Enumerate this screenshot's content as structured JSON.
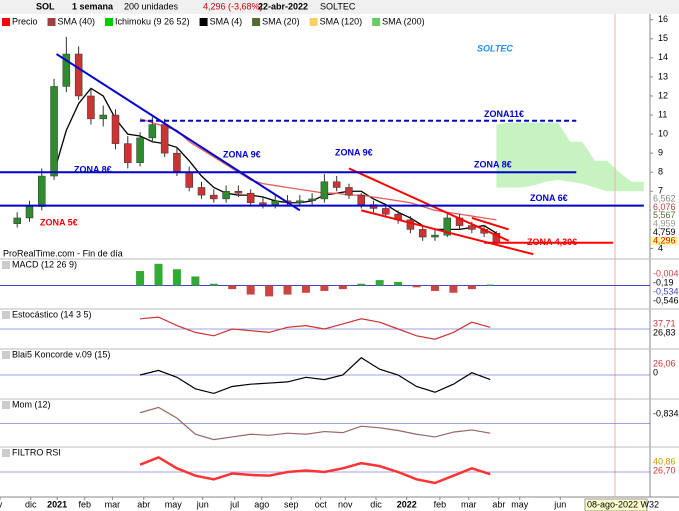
{
  "toolbar": {
    "symbol": "SOL",
    "period": "1 semana",
    "units": "200 unidades",
    "price": "4,296 (-3,68%)",
    "date": "22-abr-2022",
    "name": "SOLTEC"
  },
  "legend": [
    {
      "text": "Precio",
      "color": "#ff0000"
    },
    {
      "text": "SMA (40)",
      "color": "#a04040"
    },
    {
      "text": "Ichimoku (9 26 52)",
      "color": "#00cc00"
    },
    {
      "text": "SMA (4)",
      "color": "#000000"
    },
    {
      "text": "SMA (20)",
      "color": "#556b2f"
    },
    {
      "text": "SMA (120)",
      "color": "#ffcc66"
    },
    {
      "text": "SMA (200)",
      "color": "#66cc66"
    }
  ],
  "watermark": "ProRealTime.com - Fin de día",
  "date_box": "08-ago-2022 W32",
  "chart_data": {
    "type": "candlestick",
    "title": "SOLTEC",
    "open": [
      5.3,
      5.6,
      6.2,
      7.8,
      12.5,
      14.2,
      12.0,
      10.8,
      11.0,
      9.5,
      8.5,
      9.8,
      10.5,
      9.0,
      8.0,
      7.2,
      6.8,
      6.6,
      7.0,
      6.9,
      6.4,
      6.3,
      6.5,
      6.4,
      6.5,
      6.6,
      7.5,
      7.2,
      6.8,
      6.3,
      6.1,
      5.8,
      5.5,
      5.0,
      4.6,
      4.7,
      5.6,
      5.2,
      5.0,
      4.8
    ],
    "high": [
      5.9,
      6.5,
      8.2,
      12.9,
      15.1,
      14.6,
      12.4,
      11.5,
      11.3,
      9.9,
      10.1,
      10.9,
      10.8,
      9.3,
      8.3,
      7.5,
      7.1,
      7.3,
      7.3,
      7.1,
      6.7,
      6.8,
      6.8,
      6.8,
      6.9,
      7.9,
      7.8,
      7.4,
      6.9,
      6.5,
      6.3,
      6.0,
      5.7,
      5.2,
      5.0,
      5.9,
      5.8,
      5.4,
      5.2,
      4.9
    ],
    "low": [
      5.1,
      5.4,
      6.0,
      7.6,
      12.2,
      11.8,
      10.5,
      10.4,
      9.2,
      8.2,
      8.3,
      9.6,
      8.8,
      7.8,
      7.0,
      6.6,
      6.4,
      6.4,
      6.7,
      6.2,
      6.1,
      6.1,
      6.2,
      6.2,
      6.3,
      6.4,
      7.0,
      6.6,
      6.1,
      5.9,
      5.6,
      5.3,
      4.8,
      4.4,
      4.4,
      4.6,
      5.0,
      4.8,
      4.6,
      4.2
    ],
    "close": [
      5.6,
      6.2,
      7.8,
      12.5,
      14.2,
      12.0,
      10.8,
      11.0,
      9.5,
      8.5,
      9.8,
      10.5,
      9.0,
      8.0,
      7.2,
      6.8,
      6.6,
      7.0,
      6.9,
      6.4,
      6.3,
      6.5,
      6.4,
      6.5,
      6.6,
      7.5,
      7.2,
      6.8,
      6.3,
      6.1,
      5.8,
      5.5,
      5.0,
      4.6,
      4.7,
      5.6,
      5.2,
      5.0,
      4.8,
      4.3
    ],
    "up_color": "#2e8b2e",
    "down_color": "#cc3333",
    "lines": [
      {
        "color": "#000000",
        "values": [
          null,
          null,
          null,
          8.0,
          10.2,
          11.6,
          12.4,
          12.0,
          10.8,
          10.0,
          9.9,
          9.6,
          9.5,
          9.3,
          8.6,
          7.8,
          7.2,
          6.9,
          6.8,
          6.8,
          6.7,
          6.5,
          6.4,
          6.4,
          6.5,
          6.8,
          6.9,
          7.0,
          7.0,
          6.6,
          6.3,
          5.9,
          5.6,
          5.2,
          5.0,
          5.0,
          5.0,
          5.1,
          5.2,
          4.8
        ]
      },
      {
        "color": "#e06060",
        "values": [
          null,
          null,
          null,
          null,
          null,
          null,
          null,
          null,
          null,
          null,
          10.8,
          10.6,
          10.4,
          10.2,
          9.6,
          9.2,
          8.8,
          8.4,
          8.0,
          7.6,
          7.4,
          7.3,
          7.2,
          7.1,
          7.0,
          6.9,
          6.9,
          6.8,
          6.8,
          6.7,
          6.6,
          6.5,
          6.4,
          6.2,
          6.0,
          5.9,
          5.8,
          5.7,
          5.6,
          5.5
        ]
      }
    ],
    "cloud": {
      "color": "#b8f0b0",
      "x": [
        39,
        40,
        41,
        42,
        43,
        44,
        45,
        46,
        47,
        48,
        49,
        50,
        51
      ],
      "upper": [
        10.5,
        10.6,
        10.6,
        10.6,
        10.6,
        10.6,
        9.6,
        9.6,
        8.6,
        8.6,
        8.0,
        7.5,
        7.5
      ],
      "lower": [
        7.2,
        7.2,
        7.2,
        7.3,
        7.5,
        7.6,
        7.5,
        7.4,
        7.2,
        7.0,
        7.0,
        7.0,
        7.0
      ]
    },
    "levels": [
      {
        "label": "ZONA11€",
        "value": 10.7,
        "from": 10,
        "to": 45.5,
        "color": "#0000cc",
        "dashed": true
      },
      {
        "label": "ZONA 8€",
        "value": 8,
        "from": -3,
        "to": 45.5,
        "color": "#0000cc",
        "dashed": false
      },
      {
        "label": "ZONA 6€",
        "value": 6.25,
        "from": -3,
        "to": 51,
        "color": "#0000cc",
        "dashed": false
      },
      {
        "label": "ZONA 4,30€",
        "value": 4.3,
        "from": 38,
        "to": 48.5,
        "color": "#ff0000",
        "dashed": false
      }
    ],
    "trendlines": [
      {
        "color": "#0000cc",
        "from": [
          3.2,
          14.2
        ],
        "to": [
          23,
          6.0
        ]
      },
      {
        "color": "#ff0000",
        "from": [
          27,
          8.2
        ],
        "to": [
          40,
          4.4
        ]
      },
      {
        "color": "#ff0000",
        "from": [
          28,
          6.0
        ],
        "to": [
          42,
          3.7
        ]
      },
      {
        "color": "#ff0000",
        "from": [
          37,
          5.6
        ],
        "to": [
          40,
          5.0
        ]
      }
    ],
    "annotations": [
      {
        "text": "ZONA 9€",
        "color": "#0000cc"
      },
      {
        "text": "ZONA 9€",
        "color": "#0000cc"
      },
      {
        "text": "ZONA 5€",
        "color": "#ff0000"
      }
    ],
    "price_labels": [
      {
        "text": "6,562",
        "color": "#888"
      },
      {
        "text": "6,076",
        "color": "#c04040"
      },
      {
        "text": "5,567",
        "color": "#556b2f"
      },
      {
        "text": "4,959",
        "color": "#999"
      },
      {
        "text": "4,759",
        "color": "#000"
      },
      {
        "text": "4,296",
        "color": "#ff0000"
      }
    ],
    "ylim": [
      3.5,
      16.3
    ],
    "yticks": [
      4,
      5,
      6,
      7,
      8,
      9,
      10,
      11,
      12,
      13,
      14,
      15,
      16
    ],
    "xlim": [
      -1.4,
      51.5
    ],
    "xticks": [
      {
        "value": -1.4,
        "label": "v"
      },
      {
        "value": 1.1,
        "label": "dic"
      },
      {
        "value": 3.25,
        "label": "2021"
      },
      {
        "value": 5.5,
        "label": "feb"
      },
      {
        "value": 7.75,
        "label": "mar"
      },
      {
        "value": 10.3,
        "label": "abr"
      },
      {
        "value": 12.7,
        "label": "may"
      },
      {
        "value": 15.1,
        "label": "jun"
      },
      {
        "value": 17.7,
        "label": "jul"
      },
      {
        "value": 19.9,
        "label": "ago"
      },
      {
        "value": 22.3,
        "label": "sep"
      },
      {
        "value": 24.7,
        "label": "oct"
      },
      {
        "value": 26.7,
        "label": "nov"
      },
      {
        "value": 29.2,
        "label": "dic"
      },
      {
        "value": 31.7,
        "label": "2022"
      },
      {
        "value": 34.4,
        "label": "feb"
      },
      {
        "value": 36.75,
        "label": "mar"
      },
      {
        "value": 39.2,
        "label": "abr"
      },
      {
        "value": 40.9,
        "label": "may"
      },
      {
        "value": 44.2,
        "label": "jun"
      }
    ]
  },
  "panels": [
    {
      "type": "histogram",
      "title": "MACD (12 26 9)",
      "ylim": [
        -0.8,
        1.3
      ],
      "values": [
        0.8,
        1.2,
        0.9,
        0.5,
        0.1,
        -0.2,
        -0.5,
        -0.6,
        -0.5,
        -0.4,
        -0.3,
        -0.2,
        0.1,
        0.3,
        0.2,
        -0.1,
        -0.3,
        -0.4,
        -0.2,
        0.05
      ],
      "up_color": "#33aa33",
      "down_color": "#cc4444",
      "labels": [
        {
          "text": "-0,004",
          "color": "#cc4444"
        },
        {
          "text": "-0,19",
          "color": "#000"
        },
        {
          "text": "-0,534",
          "color": "#4444cc"
        },
        {
          "text": "-0,546",
          "color": "#000"
        }
      ]
    },
    {
      "type": "line",
      "title": "Estocástico (14 3 5)",
      "ylim": [
        0,
        100
      ],
      "values": [
        80,
        85,
        60,
        40,
        30,
        50,
        45,
        40,
        55,
        60,
        50,
        65,
        80,
        70,
        50,
        30,
        20,
        40,
        70,
        55
      ],
      "color": "#cc3333",
      "labels": [
        {
          "text": "37,71",
          "color": "#cc3333"
        },
        {
          "text": "26,83",
          "color": "#000"
        }
      ]
    },
    {
      "type": "line",
      "title": "Blai5 Koncorde v.09 (15)",
      "ylim": [
        -10,
        30
      ],
      "values": [
        10,
        14,
        8,
        -2,
        -6,
        0,
        2,
        3,
        4,
        8,
        6,
        10,
        25,
        15,
        10,
        0,
        -5,
        2,
        12,
        6
      ],
      "color": "#000000",
      "labels": [
        {
          "text": "26,06",
          "color": "#cc3333"
        },
        {
          "text": "0",
          "color": "#000"
        }
      ]
    },
    {
      "type": "line",
      "title": "Mom (12)",
      "ylim": [
        -3,
        5
      ],
      "values": [
        3,
        4,
        2,
        -1,
        -2,
        -1.5,
        -1,
        -1.2,
        -0.8,
        -1,
        -0.5,
        -0.7,
        0.5,
        0.2,
        -0.3,
        -1,
        -1.5,
        -0.6,
        -0.2,
        -0.8
      ],
      "color": "#996666",
      "labels": [
        {
          "text": "-0,834",
          "color": "#000"
        }
      ]
    },
    {
      "type": "line",
      "title": "FILTRO RSI",
      "ylim": [
        20,
        80
      ],
      "values": [
        60,
        70,
        55,
        45,
        40,
        48,
        46,
        45,
        50,
        52,
        50,
        55,
        62,
        58,
        50,
        40,
        35,
        45,
        55,
        47
      ],
      "color": "#ff3333",
      "labels": [
        {
          "text": "40,86",
          "color": "#cc9900"
        },
        {
          "text": "26,70",
          "color": "#cc3333"
        }
      ]
    }
  ]
}
